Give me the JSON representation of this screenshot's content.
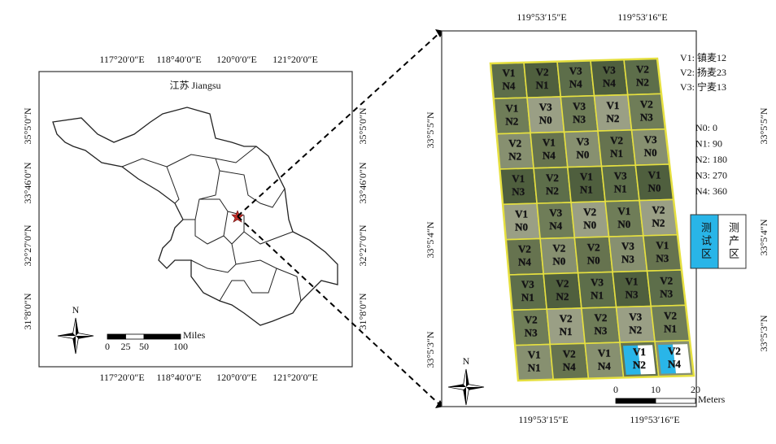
{
  "overview_map": {
    "title": "江苏 Jiangsu",
    "top_labels": [
      "117°20′0″E",
      "118°40′0″E",
      "120°0′0″E",
      "121°20′0″E"
    ],
    "bottom_labels": [
      "117°20′0″E",
      "118°40′0″E",
      "120°0′0″E",
      "121°20′0″E"
    ],
    "left_labels": [
      "35°5′0″N",
      "33°46′0″N",
      "32°27′0″N",
      "31°8′0″N"
    ],
    "right_labels": [
      "35°5′0″N",
      "33°46′0″N",
      "32°27′0″N",
      "31°8′0″N"
    ],
    "north": "N",
    "scale_unit": "Miles",
    "scale_labels": [
      0,
      25,
      50,
      100
    ]
  },
  "field_map": {
    "top_labels": [
      "119°53′15″E",
      "119°53′16″E"
    ],
    "bottom_labels": [
      "119°53′15″E",
      "119°53′16″E"
    ],
    "left_labels": [
      "33°5′5″N",
      "33°5′4″N",
      "33°5′3″N"
    ],
    "right_labels": [
      "33°5′5″N",
      "33°5′4″N",
      "33°5′3″N"
    ],
    "variety_legend": [
      "V1: 镇麦12",
      "V2: 扬麦23",
      "V3: 宁麦13"
    ],
    "nitrogen_legend": [
      "N0: 0",
      "N1: 90",
      "N2: 180",
      "N3: 270",
      "N4: 360"
    ],
    "zone_legend": [
      "测试区",
      "测产区"
    ],
    "north": "N",
    "scale_unit": "Meters",
    "scale_labels": [
      0,
      10,
      20
    ],
    "plots": [
      [
        {
          "v": "V1",
          "n": "N4",
          "c": "#e040c0"
        },
        {
          "v": "V2",
          "n": "N1",
          "c": "#e040c0"
        },
        {
          "v": "V3",
          "n": "N4",
          "c": "#e040c0"
        },
        {
          "v": "V3",
          "n": "N4",
          "c": "#e040c0"
        },
        {
          "v": "V2",
          "n": "N2",
          "c": "#f0a020"
        }
      ],
      [
        {
          "v": "V1",
          "n": "N2",
          "c": "#f0a020"
        },
        {
          "v": "V3",
          "n": "N0",
          "c": "#ffffff"
        },
        {
          "v": "V3",
          "n": "N3",
          "c": "#e02030"
        },
        {
          "v": "V1",
          "n": "N2",
          "c": "#f0a020"
        },
        {
          "v": "V2",
          "n": "N3",
          "c": "#e02030"
        }
      ],
      [
        {
          "v": "V2",
          "n": "N2",
          "c": "#f0a020"
        },
        {
          "v": "V1",
          "n": "N4",
          "c": "#e040c0"
        },
        {
          "v": "V3",
          "n": "N0",
          "c": "#ffffff"
        },
        {
          "v": "V2",
          "n": "N1",
          "c": "#f0a020"
        },
        {
          "v": "V3",
          "n": "N0",
          "c": "#ffffff"
        }
      ],
      [
        {
          "v": "V1",
          "n": "N3",
          "c": "#e02030"
        },
        {
          "v": "V2",
          "n": "N2",
          "c": "#f0a020"
        },
        {
          "v": "V1",
          "n": "N1",
          "c": "#f0a020"
        },
        {
          "v": "V3",
          "n": "N1",
          "c": "#f0a020"
        },
        {
          "v": "V1",
          "n": "N0",
          "c": "#ffffff"
        }
      ],
      [
        {
          "v": "V1",
          "n": "N0",
          "c": "#ffffff"
        },
        {
          "v": "V3",
          "n": "N4",
          "c": "#e040c0"
        },
        {
          "v": "V2",
          "n": "N0",
          "c": "#ffffff"
        },
        {
          "v": "V1",
          "n": "N0",
          "c": "#ffffff"
        },
        {
          "v": "V2",
          "n": "N2",
          "c": "#f0a020"
        }
      ],
      [
        {
          "v": "V2",
          "n": "N4",
          "c": "#e040c0"
        },
        {
          "v": "V2",
          "n": "N0",
          "c": "#ffffff"
        },
        {
          "v": "V2",
          "n": "N0",
          "c": "#ffffff"
        },
        {
          "v": "V3",
          "n": "N3",
          "c": "#e02030"
        },
        {
          "v": "V1",
          "n": "N3",
          "c": "#e02030"
        }
      ],
      [
        {
          "v": "V3",
          "n": "N1",
          "c": "#f0a020"
        },
        {
          "v": "V2",
          "n": "N2",
          "c": "#f0a020"
        },
        {
          "v": "V3",
          "n": "N1",
          "c": "#f0a020"
        },
        {
          "v": "V1",
          "n": "N3",
          "c": "#e02030"
        },
        {
          "v": "V2",
          "n": "N3",
          "c": "#e02030"
        }
      ],
      [
        {
          "v": "V2",
          "n": "N3",
          "c": "#e02030"
        },
        {
          "v": "V2",
          "n": "N1",
          "c": "#f0a020"
        },
        {
          "v": "V2",
          "n": "N3",
          "c": "#e02030"
        },
        {
          "v": "V3",
          "n": "N2",
          "c": "#f0a020"
        },
        {
          "v": "V2",
          "n": "N1",
          "c": "#f0a020"
        }
      ],
      [
        {
          "v": "V1",
          "n": "N1",
          "c": "#f0a020"
        },
        {
          "v": "V2",
          "n": "N4",
          "c": "#e040c0"
        },
        {
          "v": "V1",
          "n": "N4",
          "c": "#e040c0"
        },
        {
          "v": "V1",
          "n": "N2",
          "c": "#f0a020",
          "bg": "#29b5e8"
        },
        {
          "v": "V2",
          "n": "N4",
          "c": "#e040c0",
          "bg": "#29b5e8"
        }
      ]
    ]
  }
}
